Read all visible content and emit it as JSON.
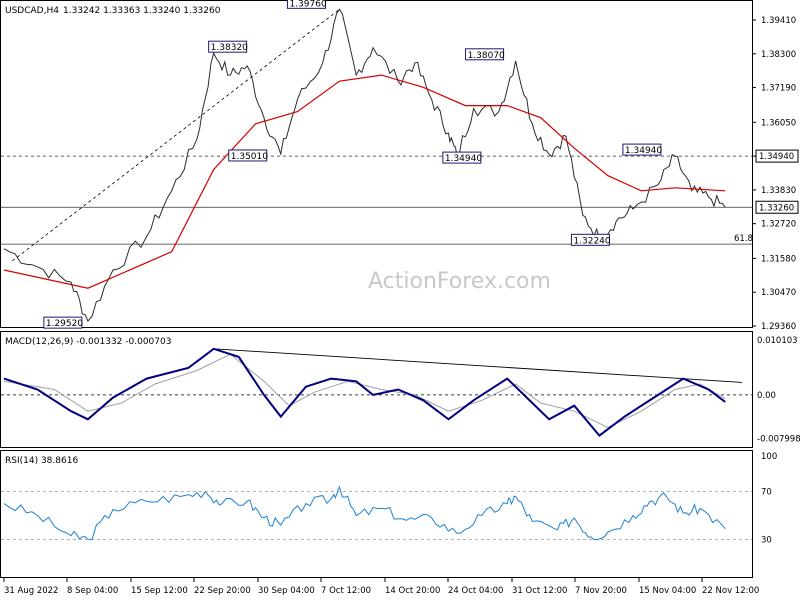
{
  "header": {
    "symbol": "USDCAD,H4",
    "ohlc": "1.33242 1.33363 1.33240 1.33260",
    "watermark": "ActionForex.com"
  },
  "chart_data": [
    {
      "type": "line",
      "title": "USDCAD,H4 1.33242 1.33363 1.33240 1.33260",
      "xlabel": "",
      "ylabel": "",
      "ylim": [
        1.2936,
        1.4049
      ],
      "y_ticks": [
        "1.39410",
        "1.38300",
        "1.37190",
        "1.36050",
        "1.34940",
        "1.33830",
        "1.32720",
        "1.31580",
        "1.30470",
        "1.29360"
      ],
      "x_ticks": [
        "31 Aug 2022",
        "8 Sep 04:00",
        "15 Sep 12:00",
        "22 Sep 20:00",
        "30 Sep 04:00",
        "7 Oct 12:00",
        "14 Oct 20:00",
        "24 Oct 04:00",
        "31 Oct 12:00",
        "7 Nov 20:00",
        "15 Nov 04:00",
        "22 Nov 12:00"
      ],
      "price_path": [
        [
          0,
          1.319
        ],
        [
          4,
          1.313
        ],
        [
          8,
          1.308
        ],
        [
          10,
          1.2952
        ],
        [
          13,
          1.312
        ],
        [
          17,
          1.323
        ],
        [
          20,
          1.338
        ],
        [
          23,
          1.355
        ],
        [
          25,
          1.3832
        ],
        [
          27,
          1.376
        ],
        [
          29,
          1.379
        ],
        [
          31,
          1.362
        ],
        [
          33,
          1.3501
        ],
        [
          35,
          1.368
        ],
        [
          38,
          1.38
        ],
        [
          40,
          1.3976
        ],
        [
          42,
          1.376
        ],
        [
          44,
          1.385
        ],
        [
          47,
          1.374
        ],
        [
          49,
          1.38
        ],
        [
          51,
          1.368
        ],
        [
          53,
          1.357
        ],
        [
          54,
          1.3494
        ],
        [
          56,
          1.365
        ],
        [
          59,
          1.364
        ],
        [
          61,
          1.3807
        ],
        [
          63,
          1.36
        ],
        [
          65,
          1.35
        ],
        [
          67,
          1.356
        ],
        [
          69,
          1.33
        ],
        [
          71,
          1.3224
        ],
        [
          73,
          1.328
        ],
        [
          75,
          1.332
        ],
        [
          78,
          1.34
        ],
        [
          80,
          1.3494
        ],
        [
          82,
          1.338
        ],
        [
          84,
          1.336
        ],
        [
          86,
          1.3326
        ]
      ],
      "moving_average": [
        [
          0,
          1.312
        ],
        [
          10,
          1.306
        ],
        [
          20,
          1.318
        ],
        [
          25,
          1.345
        ],
        [
          30,
          1.36
        ],
        [
          35,
          1.364
        ],
        [
          40,
          1.374
        ],
        [
          45,
          1.376
        ],
        [
          50,
          1.372
        ],
        [
          55,
          1.366
        ],
        [
          60,
          1.366
        ],
        [
          64,
          1.362
        ],
        [
          68,
          1.352
        ],
        [
          72,
          1.343
        ],
        [
          76,
          1.338
        ],
        [
          80,
          1.339
        ],
        [
          86,
          1.338
        ]
      ],
      "horizontal_lines": [
        {
          "value": 1.3494,
          "style": "dashed",
          "label": "1.34940"
        },
        {
          "value": 1.3326,
          "style": "solid",
          "label": "1.33260"
        },
        {
          "value": 1.3205,
          "style": "solid",
          "label": "61.8"
        }
      ],
      "annotations": [
        "1.39760",
        "1.38320",
        "1.35010",
        "1.29520",
        "1.38070",
        "1.34940",
        "1.34940",
        "1.32240"
      ],
      "colors": {
        "price": "#2b2b2b",
        "moving_average": "#d40000",
        "grid": "#000000"
      }
    },
    {
      "type": "line",
      "title": "MACD(12,26,9) -0.001332 -0.000703",
      "ylim": [
        -0.0085,
        0.0103
      ],
      "y_ticks": [
        "0.010103",
        "0.00",
        "-0.007998"
      ],
      "macd": [
        [
          0,
          0.003
        ],
        [
          4,
          0.001
        ],
        [
          8,
          -0.003
        ],
        [
          10,
          -0.0045
        ],
        [
          13,
          -0.0005
        ],
        [
          17,
          0.003
        ],
        [
          22,
          0.005
        ],
        [
          25,
          0.0085
        ],
        [
          28,
          0.007
        ],
        [
          31,
          0.0
        ],
        [
          33,
          -0.004
        ],
        [
          36,
          0.0015
        ],
        [
          39,
          0.003
        ],
        [
          42,
          0.0025
        ],
        [
          44,
          0.0
        ],
        [
          47,
          0.001
        ],
        [
          50,
          -0.001
        ],
        [
          53,
          -0.0045
        ],
        [
          56,
          -0.001
        ],
        [
          60,
          0.003
        ],
        [
          62,
          0.0
        ],
        [
          65,
          -0.0045
        ],
        [
          68,
          -0.002
        ],
        [
          71,
          -0.0075
        ],
        [
          74,
          -0.004
        ],
        [
          78,
          0.0
        ],
        [
          81,
          0.003
        ],
        [
          84,
          0.001
        ],
        [
          86,
          -0.0013
        ]
      ],
      "signal": [
        [
          0,
          0.0025
        ],
        [
          6,
          0.001
        ],
        [
          10,
          -0.003
        ],
        [
          14,
          -0.0015
        ],
        [
          18,
          0.002
        ],
        [
          23,
          0.0045
        ],
        [
          27,
          0.0075
        ],
        [
          31,
          0.0025
        ],
        [
          34,
          -0.002
        ],
        [
          37,
          0.0005
        ],
        [
          41,
          0.0025
        ],
        [
          45,
          0.001
        ],
        [
          49,
          0.0
        ],
        [
          53,
          -0.003
        ],
        [
          57,
          -0.001
        ],
        [
          61,
          0.002
        ],
        [
          64,
          -0.0015
        ],
        [
          68,
          -0.003
        ],
        [
          72,
          -0.006
        ],
        [
          76,
          -0.003
        ],
        [
          80,
          0.001
        ],
        [
          83,
          0.002
        ],
        [
          86,
          -0.0007
        ]
      ],
      "trendline": [
        [
          25,
          0.0085
        ],
        [
          88,
          0.0023
        ]
      ],
      "colors": {
        "macd": "#000080",
        "signal": "#a0a0a0"
      }
    },
    {
      "type": "line",
      "title": "RSI(14) 38.8616",
      "ylim": [
        0,
        100
      ],
      "y_ticks": [
        "100",
        "70",
        "30"
      ],
      "rsi": [
        [
          0,
          60
        ],
        [
          4,
          50
        ],
        [
          8,
          33
        ],
        [
          10,
          30
        ],
        [
          13,
          55
        ],
        [
          17,
          62
        ],
        [
          21,
          66
        ],
        [
          24,
          70
        ],
        [
          26,
          60
        ],
        [
          29,
          62
        ],
        [
          31,
          48
        ],
        [
          33,
          42
        ],
        [
          36,
          60
        ],
        [
          39,
          64
        ],
        [
          40,
          74
        ],
        [
          42,
          50
        ],
        [
          45,
          56
        ],
        [
          48,
          46
        ],
        [
          51,
          48
        ],
        [
          54,
          35
        ],
        [
          57,
          50
        ],
        [
          60,
          60
        ],
        [
          61,
          66
        ],
        [
          63,
          45
        ],
        [
          66,
          38
        ],
        [
          68,
          48
        ],
        [
          70,
          32
        ],
        [
          72,
          36
        ],
        [
          75,
          50
        ],
        [
          77,
          62
        ],
        [
          79,
          66
        ],
        [
          81,
          52
        ],
        [
          83,
          56
        ],
        [
          86,
          38.86
        ]
      ],
      "levels": [
        70,
        30
      ],
      "colors": {
        "rsi": "#1e82d2",
        "levels": "#808080"
      }
    }
  ]
}
